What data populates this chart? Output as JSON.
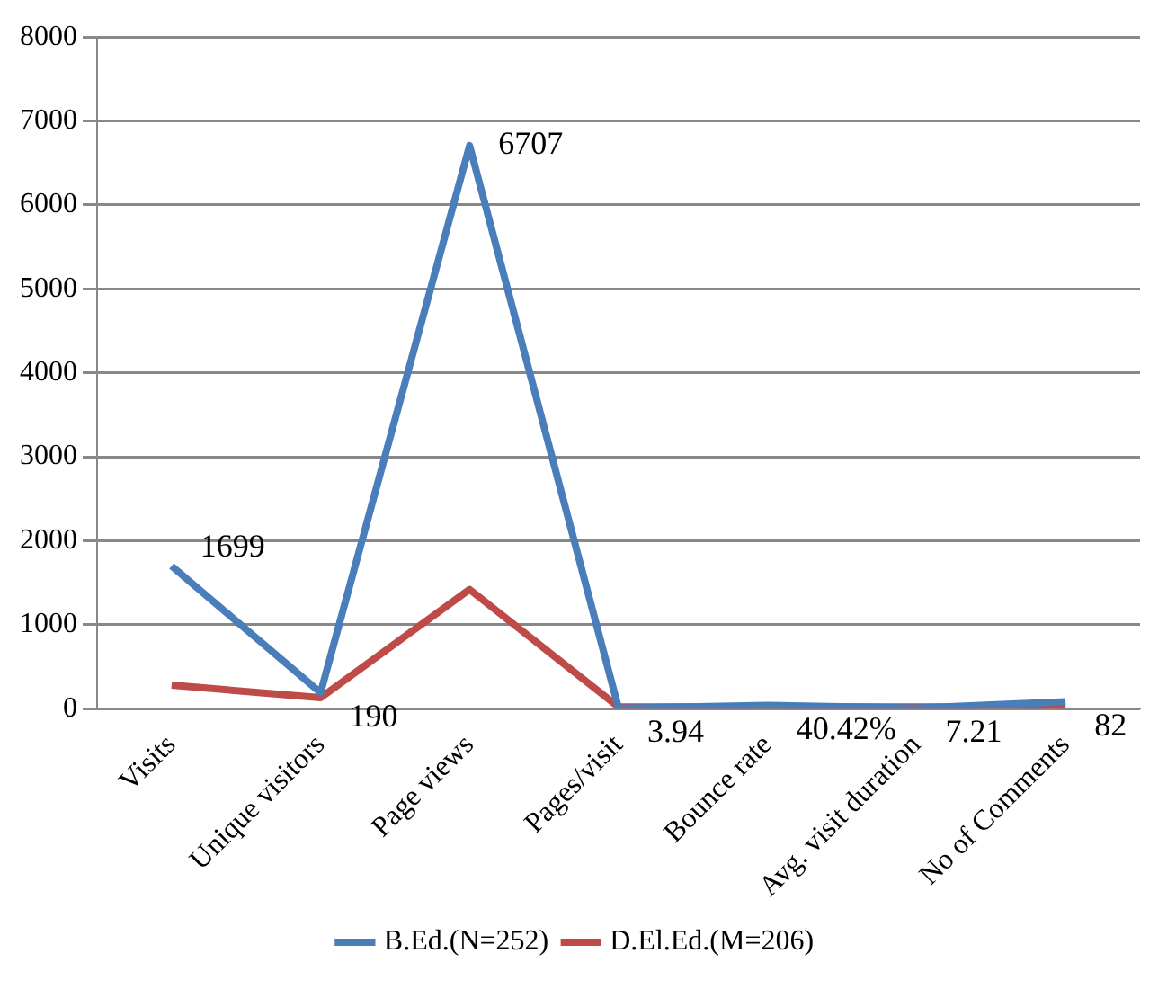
{
  "chart_data": {
    "type": "line",
    "categories": [
      "Visits",
      "Unique visitors",
      "Page views",
      "Pages/visit",
      "Bounce rate",
      "Avg. visit duration",
      "No of Comments"
    ],
    "series": [
      {
        "name": "B.Ed.(N=252)",
        "color": "#4a7ebb",
        "values": [
          1699,
          190,
          6707,
          3.94,
          40.42,
          7.21,
          82
        ],
        "value_labels": [
          "1699",
          "190",
          "6707",
          "3.94",
          "40.42%",
          "7.21",
          "82"
        ]
      },
      {
        "name": "D.El.Ed.(M=206)",
        "color": "#be4b48",
        "values": [
          280,
          130,
          1420,
          20,
          20,
          20,
          20
        ]
      }
    ],
    "ylim": [
      0,
      8000
    ],
    "yticks": [
      0,
      1000,
      2000,
      3000,
      4000,
      5000,
      6000,
      7000,
      8000
    ],
    "grid": "y",
    "legend": "bottom",
    "marker": "none",
    "line_style": "solid"
  }
}
